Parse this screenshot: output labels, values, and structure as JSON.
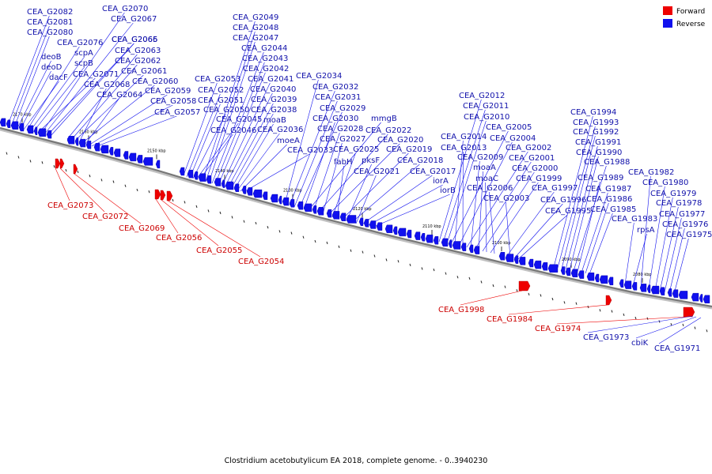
{
  "caption": "Clostridium acetobutylicum EA 2018, complete genome. - 0..3940230",
  "legend": [
    {
      "name": "Forward",
      "color": "#ee0000"
    },
    {
      "name": "Reverse",
      "color": "#1010ee"
    }
  ],
  "colors": {
    "forward": "#ee0000",
    "reverse": "#1010ee",
    "forward_label": "#cc0000",
    "reverse_label": "#1010aa",
    "backbone": "#777777"
  },
  "ticks": [
    "2170 kbp",
    "2160 kbp",
    "2150 kbp",
    "2140 kbp",
    "2130 kbp",
    "2120 kbp",
    "2110 kbp",
    "2100 kbp",
    "2090 kbp",
    "2080 kbp"
  ],
  "reverse_labels": [
    "CEA_G2082",
    "CEA_G2081",
    "CEA_G2080",
    "deoB",
    "deoD",
    "dacF",
    "CEA_G2076",
    "scpA",
    "scpB",
    "CEA_G2071",
    "CEA_G2070",
    "CEA_G2067",
    "CEA_G2066",
    "CEA_G2065",
    "CEA_G2063",
    "CEA_G2062",
    "CEA_G2061",
    "CEA_G2068",
    "CEA_G2060",
    "CEA_G2064",
    "CEA_G2059",
    "CEA_G2058",
    "CEA_G2057",
    "CEA_G2053",
    "CEA_G2052",
    "CEA_G2051",
    "CEA_G2050",
    "CEA_G2045",
    "CEA_G2046",
    "CEA_G2049",
    "CEA_G2048",
    "CEA_G2047",
    "CEA_G2044",
    "CEA_G2043",
    "CEA_G2042",
    "CEA_G2041",
    "CEA_G2040",
    "CEA_G2039",
    "CEA_G2038",
    "moaB",
    "CEA_G2036",
    "moeA",
    "CEA_G2033",
    "CEA_G2034",
    "CEA_G2032",
    "CEA_G2031",
    "CEA_G2029",
    "CEA_G2030",
    "mmgB",
    "CEA_G2028",
    "CEA_G2022",
    "CEA_G2027",
    "CEA_G2020",
    "CEA_G2025",
    "fabH",
    "CEA_G2019",
    "pksF",
    "CEA_G2018",
    "CEA_G2021",
    "CEA_G2017",
    "iorA",
    "iorB",
    "CEA_G2012",
    "CEA_G2011",
    "CEA_G2010",
    "CEA_G2005",
    "CEA_G2014",
    "CEA_G2004",
    "CEA_G2013",
    "CEA_G2002",
    "CEA_G2009",
    "CEA_G2001",
    "moaA",
    "CEA_G2000",
    "moaC",
    "CEA_G1999",
    "CEA_G2006",
    "CEA_G1997",
    "CEA_G2003",
    "CEA_G1996",
    "CEA_G1995",
    "CEA_G1994",
    "CEA_G1993",
    "CEA_G1992",
    "CEA_G1991",
    "CEA_G1990",
    "CEA_G1988",
    "CEA_G1989",
    "CEA_G1987",
    "CEA_G1986",
    "CEA_G1985",
    "CEA_G1983",
    "rpsA",
    "CEA_G1982",
    "CEA_G1980",
    "CEA_G1979",
    "CEA_G1978",
    "CEA_G1977",
    "CEA_G1976",
    "CEA_G1975",
    "CEA_G1973",
    "cbiK",
    "CEA_G1971"
  ],
  "forward_labels": [
    "CEA_G2073",
    "CEA_G2072",
    "CEA_G2069",
    "CEA_G2056",
    "CEA_G2055",
    "CEA_G2054",
    "CEA_G1998",
    "CEA_G1984",
    "CEA_G1974"
  ]
}
